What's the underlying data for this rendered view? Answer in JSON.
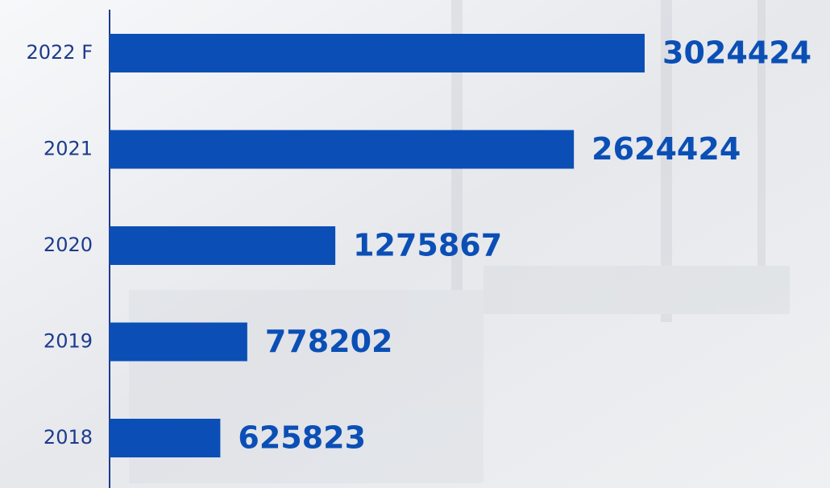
{
  "chart_data": {
    "type": "bar",
    "orientation": "horizontal",
    "categories": [
      "2022 F",
      "2021",
      "2020",
      "2019",
      "2018"
    ],
    "values": [
      3024424,
      2624424,
      1275867,
      778202,
      625823
    ],
    "color": "#0b4fb6"
  }
}
